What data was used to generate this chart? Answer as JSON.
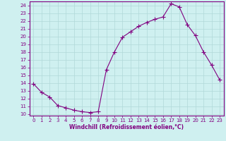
{
  "x": [
    0,
    1,
    2,
    3,
    4,
    5,
    6,
    7,
    8,
    9,
    10,
    11,
    12,
    13,
    14,
    15,
    16,
    17,
    18,
    19,
    20,
    21,
    22,
    23
  ],
  "y": [
    13.9,
    12.8,
    12.2,
    11.1,
    10.8,
    10.5,
    10.3,
    10.2,
    10.3,
    15.7,
    18.0,
    19.9,
    20.6,
    21.3,
    21.8,
    22.2,
    22.5,
    24.2,
    23.8,
    21.5,
    20.1,
    18.0,
    16.3,
    14.4
  ],
  "line_color": "#800080",
  "marker": "+",
  "marker_size": 4,
  "bg_color": "#cff0f0",
  "grid_color": "#b0d8d8",
  "xlabel": "Windchill (Refroidissement éolien,°C)",
  "xlabel_color": "#800080",
  "tick_color": "#800080",
  "spine_color": "#800080",
  "ylim": [
    9.8,
    24.5
  ],
  "xlim": [
    -0.5,
    23.5
  ],
  "yticks": [
    10,
    11,
    12,
    13,
    14,
    15,
    16,
    17,
    18,
    19,
    20,
    21,
    22,
    23,
    24
  ],
  "xticks": [
    0,
    1,
    2,
    3,
    4,
    5,
    6,
    7,
    8,
    9,
    10,
    11,
    12,
    13,
    14,
    15,
    16,
    17,
    18,
    19,
    20,
    21,
    22,
    23
  ],
  "tick_fontsize": 5.0,
  "xlabel_fontsize": 5.5,
  "linewidth": 0.8,
  "marker_edge_width": 0.8
}
